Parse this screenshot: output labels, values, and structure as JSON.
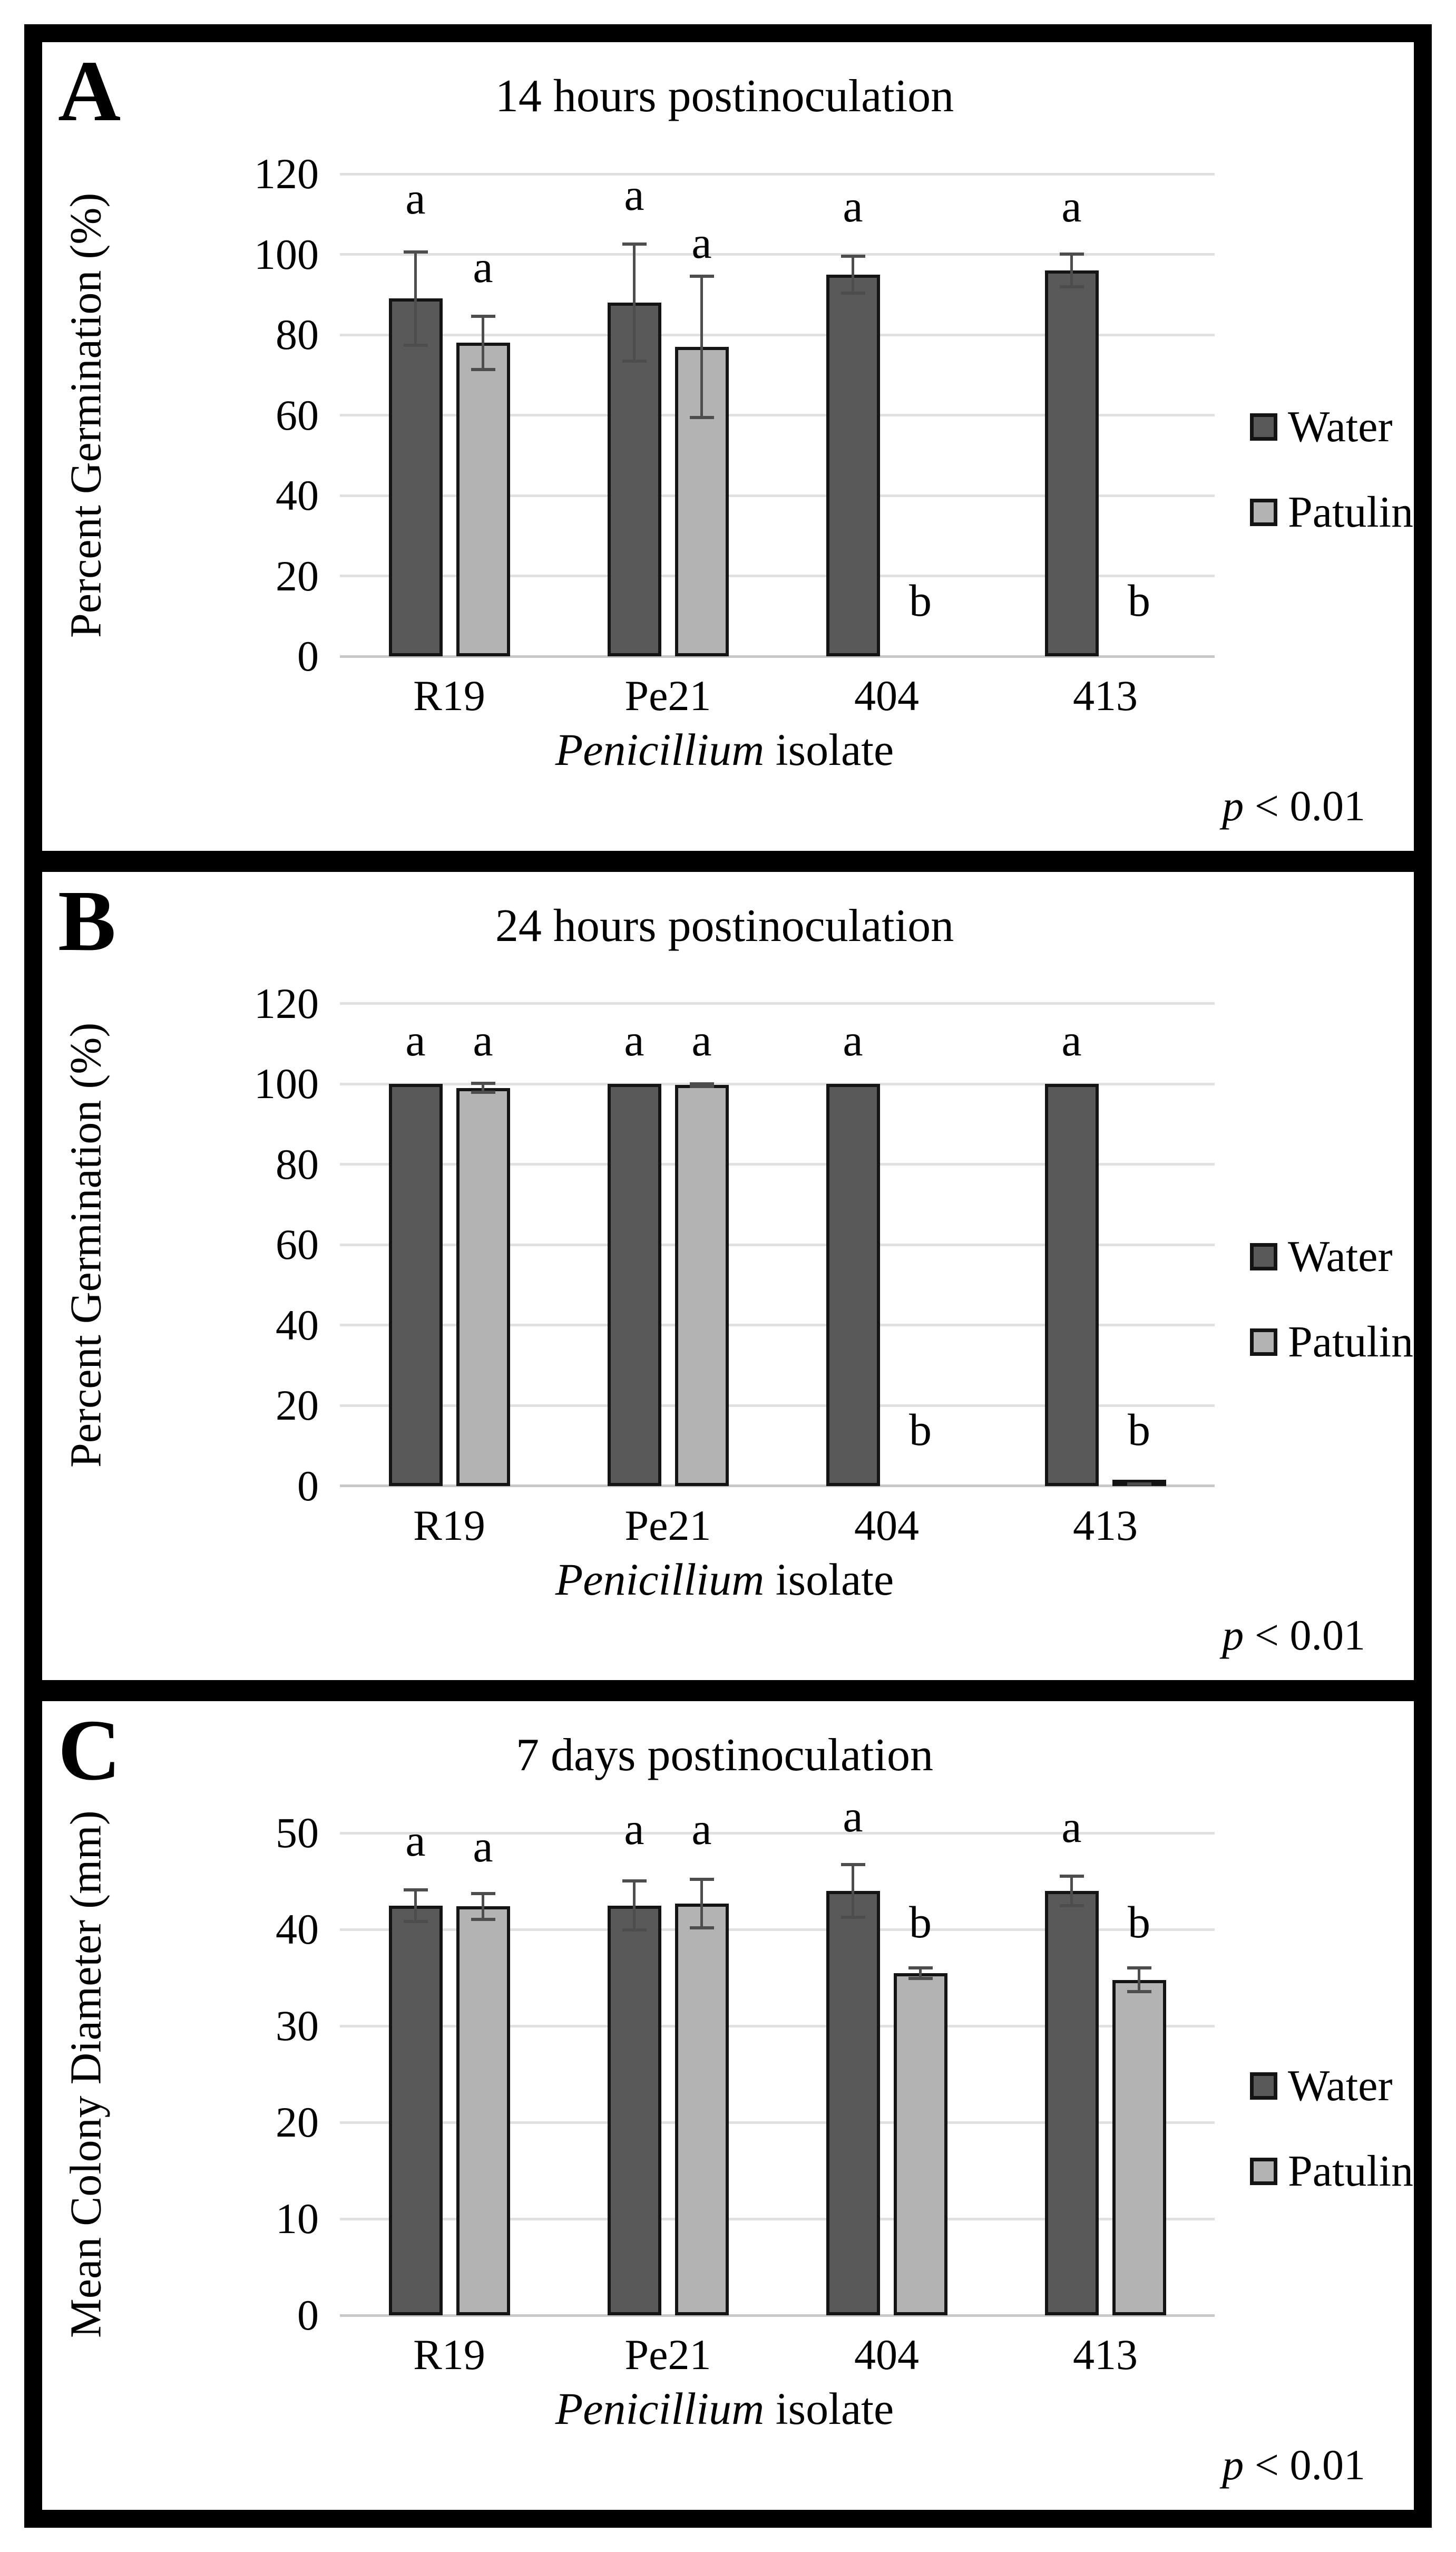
{
  "figure": {
    "xlabel_italic": "Penicillium",
    "xlabel_rest": " isolate",
    "p_italic": "p",
    "p_rest": " < 0.01",
    "legend": [
      {
        "label": "Water",
        "color": "#595959",
        "border": "#141414"
      },
      {
        "label": "Patulin",
        "color": "#b3b3b3",
        "border": "#141414"
      }
    ],
    "colors": {
      "gridline": "#e0e0e0",
      "axis_line": "#c8c8c8",
      "error_bar": "#4d4d4d",
      "frame": "#000000",
      "text": "#000000"
    }
  },
  "chart_data": [
    {
      "panel": "A",
      "type": "bar",
      "title": "14 hours postinoculation",
      "xlabel": "Penicillium isolate",
      "ylabel": "Percent Germination (%)",
      "ylim": [
        0,
        120
      ],
      "ytick_step": 20,
      "grid": true,
      "legend_position": "right",
      "p_note": "p < 0.01",
      "categories": [
        "R19",
        "Pe21",
        "404",
        "413"
      ],
      "series": [
        {
          "name": "Water",
          "color": "#595959",
          "values": [
            89,
            88,
            95,
            96
          ],
          "errors": [
            12,
            15,
            5,
            4.5
          ],
          "letters": [
            "a",
            "a",
            "a",
            "a"
          ],
          "letter_y": [
            108,
            109,
            106,
            106
          ]
        },
        {
          "name": "Patulin",
          "color": "#b3b3b3",
          "values": [
            78,
            77,
            0,
            0
          ],
          "errors": [
            7,
            18,
            0,
            0
          ],
          "letters": [
            "a",
            "a",
            "b",
            "b"
          ],
          "letter_y": [
            91,
            97,
            8,
            8
          ]
        }
      ]
    },
    {
      "panel": "B",
      "type": "bar",
      "title": "24 hours postinoculation",
      "xlabel": "Penicillium isolate",
      "ylabel": "Percent Germination (%)",
      "ylim": [
        0,
        120
      ],
      "ytick_step": 20,
      "grid": true,
      "legend_position": "right",
      "p_note": "p < 0.01",
      "categories": [
        "R19",
        "Pe21",
        "404",
        "413"
      ],
      "series": [
        {
          "name": "Water",
          "color": "#595959",
          "values": [
            100,
            100,
            100,
            100
          ],
          "errors": [
            0,
            0,
            0,
            0
          ],
          "letters": [
            "a",
            "a",
            "a",
            "a"
          ],
          "letter_y": [
            105,
            105,
            105,
            105
          ]
        },
        {
          "name": "Patulin",
          "color": "#b3b3b3",
          "values": [
            99,
            99.7,
            0,
            0.5
          ],
          "errors": [
            1.5,
            0.7,
            0,
            0.4
          ],
          "letters": [
            "a",
            "a",
            "b",
            "b"
          ],
          "letter_y": [
            105,
            105,
            8,
            8
          ]
        }
      ]
    },
    {
      "panel": "C",
      "type": "bar",
      "title": "7 days postinoculation",
      "xlabel": "Penicillium isolate",
      "ylabel": "Mean Colony Diameter (mm)",
      "ylim": [
        0,
        50
      ],
      "ytick_step": 10,
      "grid": true,
      "legend_position": "right",
      "p_note": "p < 0.01",
      "categories": [
        "R19",
        "Pe21",
        "404",
        "413"
      ],
      "series": [
        {
          "name": "Water",
          "color": "#595959",
          "values": [
            42.5,
            42.5,
            44,
            44
          ],
          "errors": [
            1.8,
            2.7,
            2.9,
            1.7
          ],
          "letters": [
            "a",
            "a",
            "a",
            "a"
          ],
          "letter_y": [
            46.8,
            48,
            49.3,
            48.2
          ]
        },
        {
          "name": "Patulin",
          "color": "#b3b3b3",
          "values": [
            42.4,
            42.7,
            35.5,
            34.8
          ],
          "errors": [
            1.5,
            2.7,
            0.7,
            1.4
          ],
          "letters": [
            "a",
            "a",
            "b",
            "b"
          ],
          "letter_y": [
            46.2,
            48,
            38.3,
            38.3
          ]
        }
      ]
    }
  ]
}
